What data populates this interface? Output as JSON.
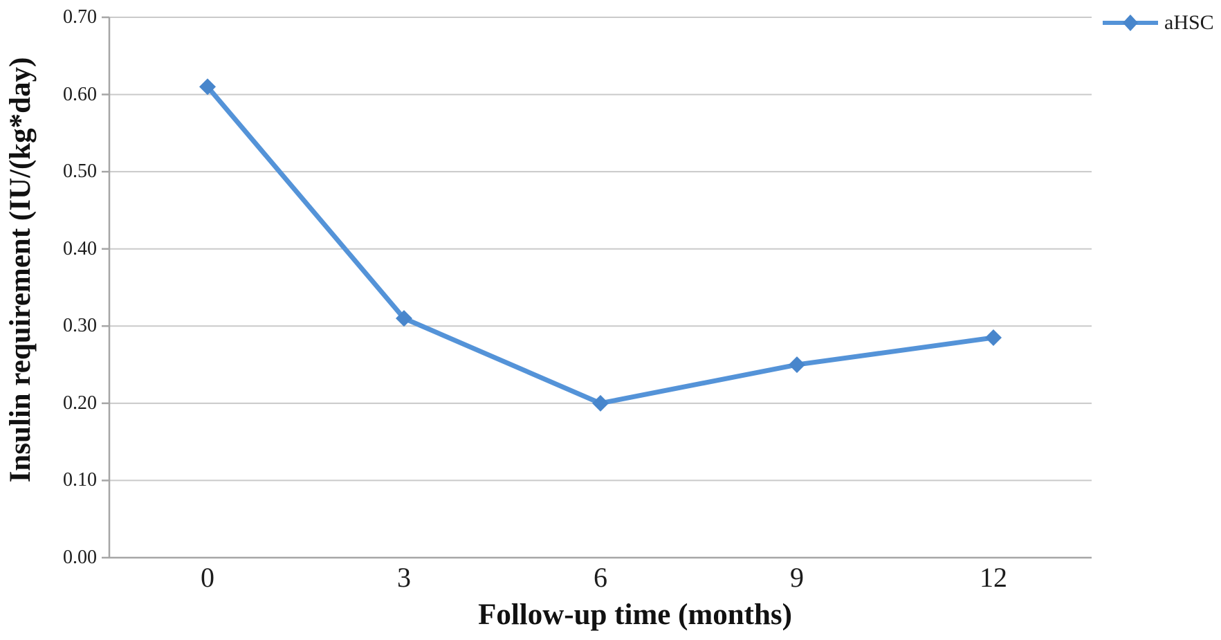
{
  "chart_data": {
    "type": "line",
    "title": "",
    "xlabel": "Follow-up time  (months)",
    "ylabel": "Insulin requirement (IU/(kg*day)",
    "categories": [
      "0",
      "3",
      "6",
      "9",
      "12"
    ],
    "series": [
      {
        "name": "aHSC",
        "values": [
          0.61,
          0.31,
          0.2,
          0.25,
          0.285
        ],
        "marker": "diamond"
      }
    ],
    "ylim": [
      0.0,
      0.7
    ],
    "y_tick_values": [
      0.7,
      0.6,
      0.5,
      0.4,
      0.3,
      0.2,
      0.1,
      0.0
    ],
    "y_tick_labels": [
      "0.70",
      "0.60",
      "0.50",
      "0.40",
      "0.30",
      "0.20",
      "0.10",
      "0.00"
    ],
    "x_tick_labels": [
      "0",
      "3",
      "6",
      "9",
      "12"
    ],
    "grid": "horizontal",
    "legend_position": "top-right",
    "colors": {
      "line": "#5493D8",
      "marker": "#4886CC",
      "gridline": "#CACACA",
      "axis": "#A6A6A6",
      "text": "#1c1c1c"
    }
  },
  "legend": {
    "label": "aHSC"
  }
}
